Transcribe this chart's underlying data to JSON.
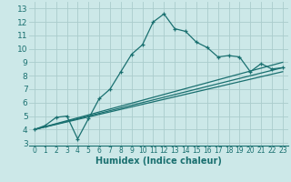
{
  "xlabel": "Humidex (Indice chaleur)",
  "ylabel": "",
  "bg_color": "#cce8e8",
  "grid_color": "#aacccc",
  "line_color": "#1a7070",
  "xlim": [
    -0.5,
    23.5
  ],
  "ylim": [
    2.8,
    13.5
  ],
  "xticks": [
    0,
    1,
    2,
    3,
    4,
    5,
    6,
    7,
    8,
    9,
    10,
    11,
    12,
    13,
    14,
    15,
    16,
    17,
    18,
    19,
    20,
    21,
    22,
    23
  ],
  "yticks": [
    3,
    4,
    5,
    6,
    7,
    8,
    9,
    10,
    11,
    12,
    13
  ],
  "curve1_x": [
    0,
    1,
    2,
    3,
    4,
    5,
    6,
    7,
    8,
    9,
    10,
    11,
    12,
    13,
    14,
    15,
    16,
    17,
    18,
    19,
    20,
    21,
    22,
    23
  ],
  "curve1_y": [
    4.0,
    4.3,
    4.9,
    5.0,
    3.3,
    4.8,
    6.3,
    7.0,
    8.3,
    9.6,
    10.3,
    12.0,
    12.6,
    11.5,
    11.3,
    10.5,
    10.1,
    9.4,
    9.5,
    9.4,
    8.3,
    8.9,
    8.5,
    8.6
  ],
  "line2_x": [
    0,
    23
  ],
  "line2_y": [
    4.0,
    9.0
  ],
  "line3_x": [
    0,
    23
  ],
  "line3_y": [
    4.0,
    8.6
  ],
  "line4_x": [
    0,
    23
  ],
  "line4_y": [
    4.0,
    8.3
  ]
}
